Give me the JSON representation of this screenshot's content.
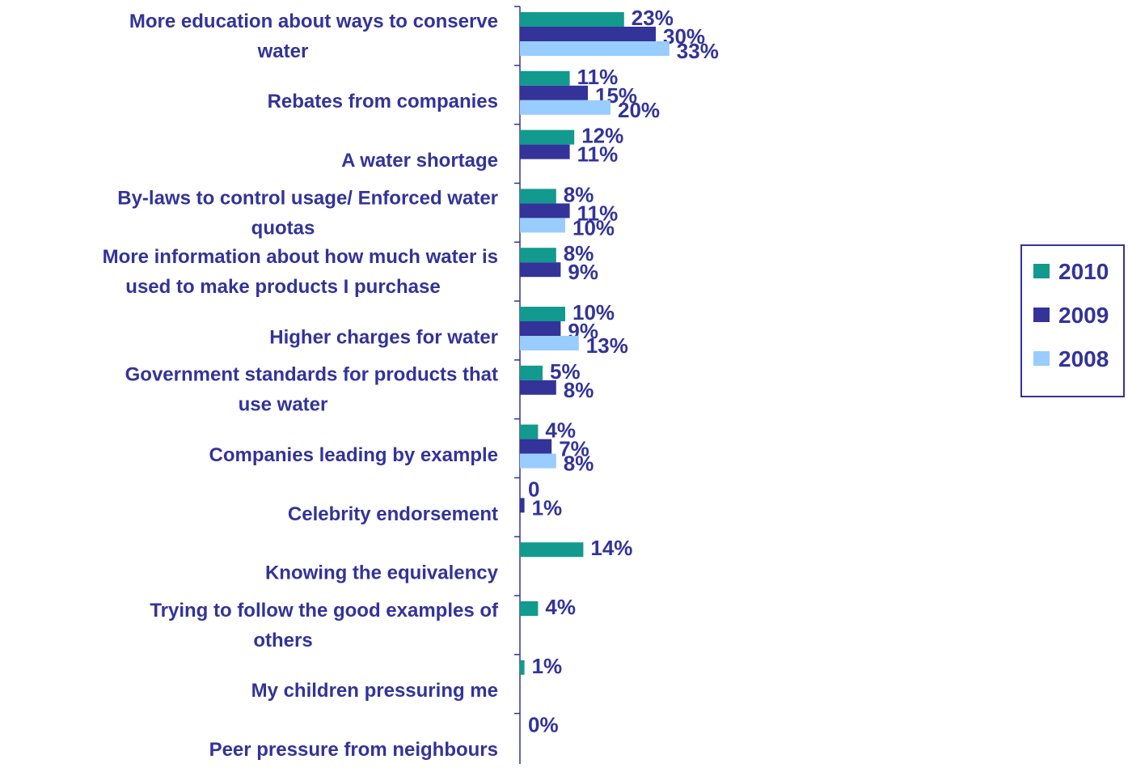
{
  "chart_data": {
    "type": "bar",
    "orientation": "horizontal",
    "categories": [
      [
        "More education about ways to conserve",
        "water"
      ],
      [
        "Rebates from companies"
      ],
      [
        "A water shortage"
      ],
      [
        "By-laws to control usage/ Enforced water",
        "quotas"
      ],
      [
        "More information about how much water is",
        "used to make products I purchase"
      ],
      [
        "Higher charges for water"
      ],
      [
        "Government standards for products that",
        "use water"
      ],
      [
        "Companies leading by example"
      ],
      [
        "Celebrity endorsement"
      ],
      [
        "Knowing the equivalency"
      ],
      [
        "Trying to follow the good examples of",
        "others"
      ],
      [
        "My children pressuring me"
      ],
      [
        "Peer pressure from neighbours"
      ]
    ],
    "series": [
      {
        "name": "2010",
        "color": "#129A8E",
        "values": [
          23,
          11,
          12,
          8,
          8,
          10,
          5,
          4,
          0,
          14,
          4,
          1,
          0
        ],
        "labels": [
          "23%",
          "11%",
          "12%",
          "8%",
          "8%",
          "10%",
          "5%",
          "4%",
          "0",
          "14%",
          "4%",
          "1%",
          "0%"
        ]
      },
      {
        "name": "2009",
        "color": "#333399",
        "values": [
          30,
          15,
          11,
          11,
          9,
          9,
          8,
          7,
          1,
          null,
          null,
          null,
          null
        ],
        "labels": [
          "30%",
          "15%",
          "11%",
          "11%",
          "9%",
          "9%",
          "8%",
          "7%",
          "1%",
          null,
          null,
          null,
          null
        ]
      },
      {
        "name": "2008",
        "color": "#99CCFF",
        "values": [
          33,
          20,
          null,
          10,
          null,
          13,
          null,
          8,
          null,
          null,
          null,
          null,
          null
        ],
        "labels": [
          "33%",
          "20%",
          null,
          "10%",
          null,
          "13%",
          null,
          "8%",
          null,
          null,
          null,
          null,
          null
        ]
      }
    ],
    "xlim": [
      0,
      35
    ],
    "legend": {
      "position": "right",
      "entries": [
        "2010",
        "2009",
        "2008"
      ]
    },
    "grid": false,
    "label_color": "#333399"
  }
}
